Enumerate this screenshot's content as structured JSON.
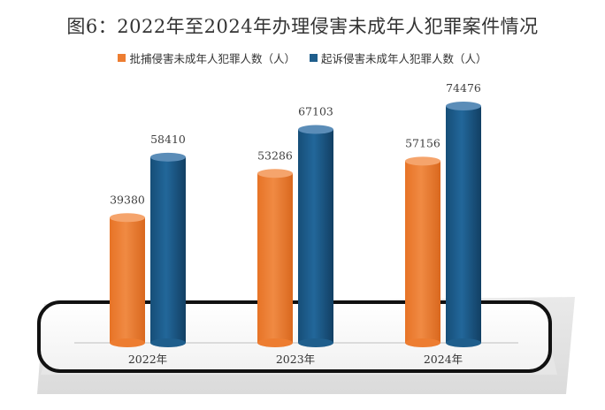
{
  "chart_data": {
    "type": "bar",
    "title": "图6：2022年至2024年办理侵害未成年人犯罪案件情况",
    "categories": [
      "2022年",
      "2023年",
      "2024年"
    ],
    "series": [
      {
        "name": "批捕侵害未成年人犯罪人数（人）",
        "values": [
          39380,
          53286,
          57156
        ],
        "color": "#ED7D31"
      },
      {
        "name": "起诉侵害未成年人犯罪人数（人）",
        "values": [
          58410,
          67103,
          74476
        ],
        "color": "#1F5E8C"
      }
    ],
    "data_labels": true,
    "legend_position": "top",
    "grid": false
  }
}
